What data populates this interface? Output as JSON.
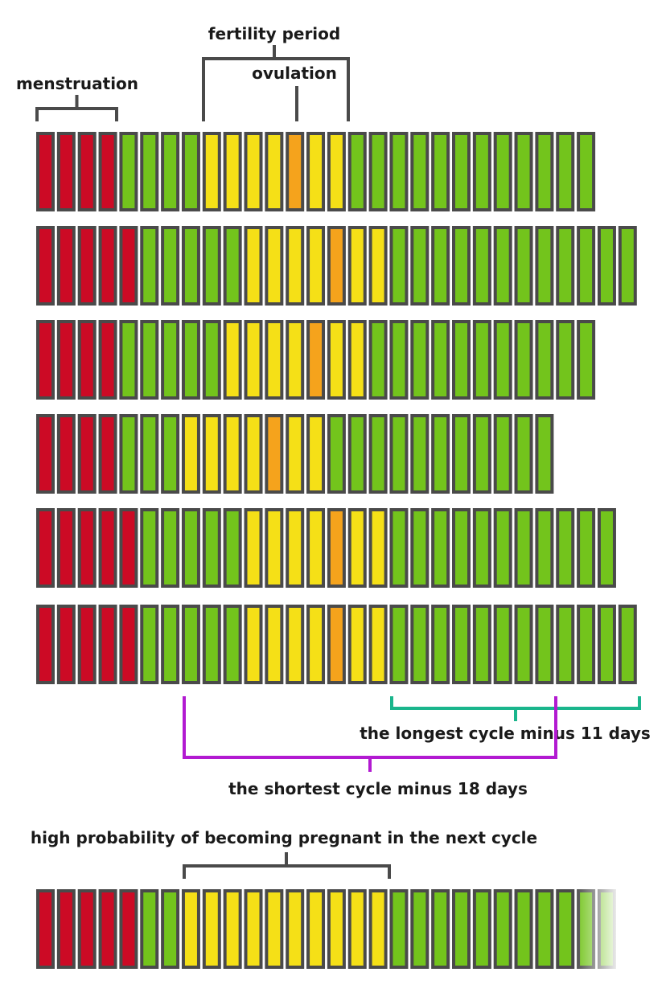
{
  "labels": {
    "menstruation": "menstruation",
    "fertility_period": "fertility period",
    "ovulation": "ovulation",
    "longest_cycle": "the longest cycle minus 11 days",
    "shortest_cycle": "the shortest cycle minus 18 days",
    "high_probability": "high probability of becoming pregnant in the next cycle"
  },
  "colors": {
    "menstruation": "#cc0a25",
    "infertile": "#73c41c",
    "fertile": "#f5e017",
    "ovulation": "#f5a31c",
    "outline": "#4a4a4a",
    "bracket": "#4a4a4a",
    "longest_bracket": "#1ab58c",
    "shortest_bracket": "#b21ad1"
  },
  "legend_key": {
    "M": "menstruation",
    "G": "infertile",
    "Y": "fertile",
    "O": "ovulation"
  },
  "cycles": [
    {
      "days": 27,
      "pattern": "MMMMGGGGYYYYOYYGGGGGGGGGGGG"
    },
    {
      "days": 29,
      "pattern": "MMMMMGGGGGYYYYOYYGGGGGGGGGGGG"
    },
    {
      "days": 27,
      "pattern": "MMMMGGGGGYYYYOYYGGGGGGGGGGG"
    },
    {
      "days": 25,
      "pattern": "MMMMGGGYYYYOYYGGGGGGGGGGG"
    },
    {
      "days": 28,
      "pattern": "MMMMMGGGGGYYYYOYYGGGGGGGGGGG"
    },
    {
      "days": 29,
      "pattern": "MMMMMGGGGGYYYYOYYGGGGGGGGGGGG"
    }
  ],
  "prediction": {
    "pattern": "MMMMMGGYYYYYYYYYYGGGGGGGGG",
    "fading_days": 2
  },
  "calculation": {
    "shortest_cycle_days": 25,
    "shortest_subtract": 18,
    "longest_cycle_days": 29,
    "longest_subtract": 11
  }
}
